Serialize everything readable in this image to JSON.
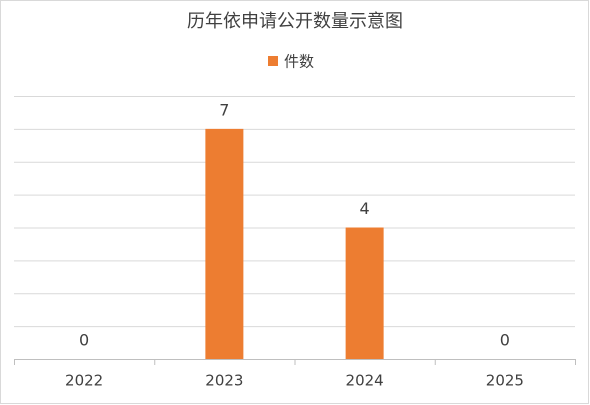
{
  "chart_data": {
    "type": "bar",
    "title": "历年依申请公开数量示意图",
    "categories": [
      "2022",
      "2023",
      "2024",
      "2025"
    ],
    "series": [
      {
        "name": "件数",
        "color": "#ed7d31",
        "values": [
          0,
          7,
          4,
          0
        ]
      }
    ],
    "ylim": [
      0,
      8
    ],
    "yticks": [
      0,
      1,
      2,
      3,
      4,
      5,
      6,
      7,
      8
    ],
    "grid": true,
    "legend": "top"
  }
}
